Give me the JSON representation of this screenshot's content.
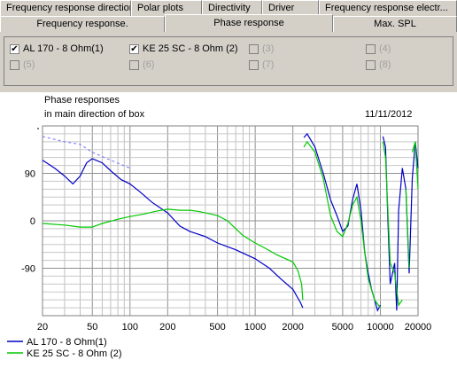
{
  "tabs_row1": [
    "Frequency response directions",
    "Polar plots",
    "Directivity",
    "Driver",
    "Frequency response electr..."
  ],
  "tabs_row2": [
    "Frequency response.",
    "Phase response",
    "Max. SPL"
  ],
  "checkboxes": [
    {
      "label": "AL 170 - 8 Ohm(1)",
      "checked": true,
      "enabled": true
    },
    {
      "label": "KE 25 SC - 8 Ohm   (2)",
      "checked": true,
      "enabled": true
    },
    {
      "label": "(3)",
      "checked": false,
      "enabled": false
    },
    {
      "label": "(4)",
      "checked": false,
      "enabled": false
    },
    {
      "label": "(5)",
      "checked": false,
      "enabled": false
    },
    {
      "label": "(6)",
      "checked": false,
      "enabled": false
    },
    {
      "label": "(7)",
      "checked": false,
      "enabled": false
    },
    {
      "label": "(8)",
      "checked": false,
      "enabled": false
    }
  ],
  "chart_header": {
    "title_line1": "Phase responses",
    "title_line2": "in main direction of box",
    "date": "11/11/2012"
  },
  "chart_data": {
    "type": "line",
    "xscale": "log",
    "xlim": [
      20,
      20000
    ],
    "ylim": [
      -180,
      180
    ],
    "x_ticks": [
      "20",
      "50",
      "100",
      "200",
      "500",
      "1000",
      "2000",
      "5000",
      "10000",
      "20000"
    ],
    "y_ticks": [
      "90",
      "0",
      "-90"
    ],
    "grid": true,
    "legend_position": "bottom-left",
    "series": [
      {
        "name": "AL 170 - 8 Ohm(1)",
        "color": "#0000c8",
        "points": [
          [
            20,
            115
          ],
          [
            25,
            100
          ],
          [
            30,
            85
          ],
          [
            35,
            70
          ],
          [
            40,
            85
          ],
          [
            45,
            110
          ],
          [
            50,
            118
          ],
          [
            60,
            110
          ],
          [
            70,
            95
          ],
          [
            85,
            78
          ],
          [
            100,
            70
          ],
          [
            120,
            55
          ],
          [
            150,
            35
          ],
          [
            200,
            15
          ],
          [
            250,
            -10
          ],
          [
            300,
            -20
          ],
          [
            400,
            -30
          ],
          [
            500,
            -42
          ],
          [
            700,
            -55
          ],
          [
            1000,
            -72
          ],
          [
            1300,
            -90
          ],
          [
            1600,
            -110
          ],
          [
            2000,
            -130
          ],
          [
            2300,
            -155
          ],
          [
            2400,
            -165
          ],
          [
            2450,
            158
          ],
          [
            2600,
            165
          ],
          [
            3000,
            140
          ],
          [
            3500,
            90
          ],
          [
            4000,
            40
          ],
          [
            4500,
            10
          ],
          [
            5000,
            -20
          ],
          [
            5500,
            -10
          ],
          [
            6000,
            40
          ],
          [
            6500,
            70
          ],
          [
            7000,
            20
          ],
          [
            7500,
            -60
          ],
          [
            8000,
            -100
          ],
          [
            8500,
            -130
          ],
          [
            9000,
            -150
          ],
          [
            9500,
            -170
          ],
          [
            10000,
            -160
          ],
          [
            10500,
            160
          ],
          [
            11000,
            140
          ],
          [
            11500,
            0
          ],
          [
            12000,
            -120
          ],
          [
            13000,
            -80
          ],
          [
            13500,
            -170
          ],
          [
            14000,
            20
          ],
          [
            15000,
            100
          ],
          [
            16000,
            60
          ],
          [
            17000,
            -100
          ],
          [
            18000,
            80
          ],
          [
            19000,
            150
          ],
          [
            20000,
            100
          ]
        ]
      },
      {
        "name": "KE 25 SC - 8 Ohm   (2)",
        "color": "#00c800",
        "points": [
          [
            20,
            -5
          ],
          [
            30,
            -8
          ],
          [
            40,
            -12
          ],
          [
            50,
            -12
          ],
          [
            60,
            -5
          ],
          [
            80,
            3
          ],
          [
            100,
            8
          ],
          [
            130,
            13
          ],
          [
            160,
            18
          ],
          [
            200,
            22
          ],
          [
            250,
            20
          ],
          [
            300,
            20
          ],
          [
            350,
            18
          ],
          [
            400,
            15
          ],
          [
            500,
            10
          ],
          [
            600,
            0
          ],
          [
            700,
            -15
          ],
          [
            800,
            -28
          ],
          [
            1000,
            -42
          ],
          [
            1200,
            -52
          ],
          [
            1500,
            -65
          ],
          [
            2000,
            -78
          ],
          [
            2200,
            -95
          ],
          [
            2350,
            -120
          ],
          [
            2400,
            -150
          ],
          [
            2450,
            140
          ],
          [
            2600,
            150
          ],
          [
            3000,
            130
          ],
          [
            3500,
            80
          ],
          [
            4000,
            10
          ],
          [
            4500,
            -20
          ],
          [
            5000,
            -30
          ],
          [
            5500,
            -5
          ],
          [
            6000,
            30
          ],
          [
            6500,
            45
          ],
          [
            7000,
            0
          ],
          [
            7500,
            -60
          ],
          [
            8000,
            -110
          ],
          [
            9000,
            -150
          ],
          [
            10000,
            -165
          ],
          [
            10500,
            150
          ],
          [
            11000,
            120
          ],
          [
            12000,
            -80
          ],
          [
            13000,
            -100
          ],
          [
            14000,
            -160
          ],
          [
            15000,
            -150
          ],
          [
            16000,
            60
          ],
          [
            17000,
            -90
          ],
          [
            18000,
            130
          ],
          [
            19000,
            150
          ],
          [
            20000,
            60
          ]
        ]
      },
      {
        "name": "",
        "color": "#8080ff",
        "dashed": true,
        "points": [
          [
            20,
            160
          ],
          [
            30,
            150
          ],
          [
            40,
            145
          ],
          [
            50,
            130
          ],
          [
            70,
            115
          ],
          [
            100,
            100
          ]
        ]
      }
    ]
  },
  "legend": [
    {
      "label": "AL 170 - 8 Ohm(1)",
      "color": "#0000c8"
    },
    {
      "label": "KE 25 SC - 8 Ohm   (2)",
      "color": "#00c800"
    }
  ]
}
